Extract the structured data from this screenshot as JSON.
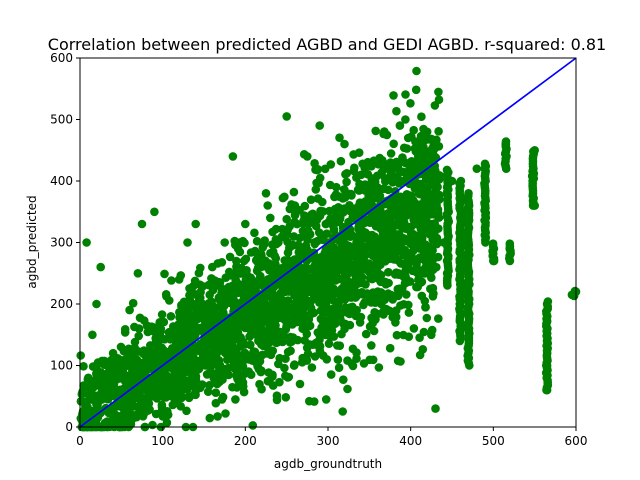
{
  "chart_data": {
    "type": "scatter",
    "title": "Correlation between predicted AGBD and GEDI AGBD. r-squared: 0.81",
    "xlabel": "agdb_groundtruth",
    "ylabel": "agbd_predicted",
    "xlim": [
      0,
      600
    ],
    "ylim": [
      0,
      600
    ],
    "xticks": [
      0,
      100,
      200,
      300,
      400,
      500,
      600
    ],
    "yticks": [
      0,
      100,
      200,
      300,
      400,
      500,
      600
    ],
    "grid": false,
    "legend": "none",
    "point_color": "#008000",
    "line_color": "#0000ff",
    "reference_line": {
      "x": [
        0,
        600
      ],
      "y": [
        0,
        600
      ]
    },
    "series": [
      {
        "values_sample": [
          [
            5,
            20
          ],
          [
            10,
            80
          ],
          [
            15,
            150
          ],
          [
            20,
            200
          ],
          [
            25,
            260
          ],
          [
            8,
            300
          ],
          [
            40,
            120
          ],
          [
            50,
            60
          ],
          [
            60,
            190
          ],
          [
            70,
            250
          ],
          [
            75,
            330
          ],
          [
            90,
            350
          ],
          [
            100,
            90
          ],
          [
            110,
            180
          ],
          [
            120,
            240
          ],
          [
            130,
            300
          ],
          [
            140,
            330
          ],
          [
            150,
            140
          ],
          [
            160,
            260
          ],
          [
            175,
            300
          ],
          [
            185,
            440
          ],
          [
            190,
            200
          ],
          [
            200,
            330
          ],
          [
            215,
            280
          ],
          [
            225,
            380
          ],
          [
            240,
            300
          ],
          [
            250,
            505
          ],
          [
            260,
            360
          ],
          [
            275,
            440
          ],
          [
            290,
            490
          ],
          [
            300,
            300
          ],
          [
            310,
            390
          ],
          [
            320,
            460
          ],
          [
            330,
            340
          ],
          [
            340,
            410
          ],
          [
            355,
            260
          ],
          [
            360,
            380
          ],
          [
            375,
            330
          ],
          [
            385,
            420
          ],
          [
            400,
            300
          ],
          [
            410,
            380
          ],
          [
            420,
            480
          ],
          [
            425,
            150
          ],
          [
            430,
            30
          ],
          [
            440,
            300
          ],
          [
            450,
            400
          ],
          [
            460,
            340
          ],
          [
            470,
            300
          ],
          [
            480,
            420
          ],
          [
            490,
            360
          ],
          [
            500,
            270
          ],
          [
            515,
            460
          ],
          [
            520,
            290
          ],
          [
            550,
            450
          ],
          [
            550,
            360
          ],
          [
            565,
            200
          ],
          [
            565,
            100
          ],
          [
            565,
            60
          ],
          [
            595,
            215
          ],
          [
            600,
            220
          ]
        ]
      }
    ]
  }
}
